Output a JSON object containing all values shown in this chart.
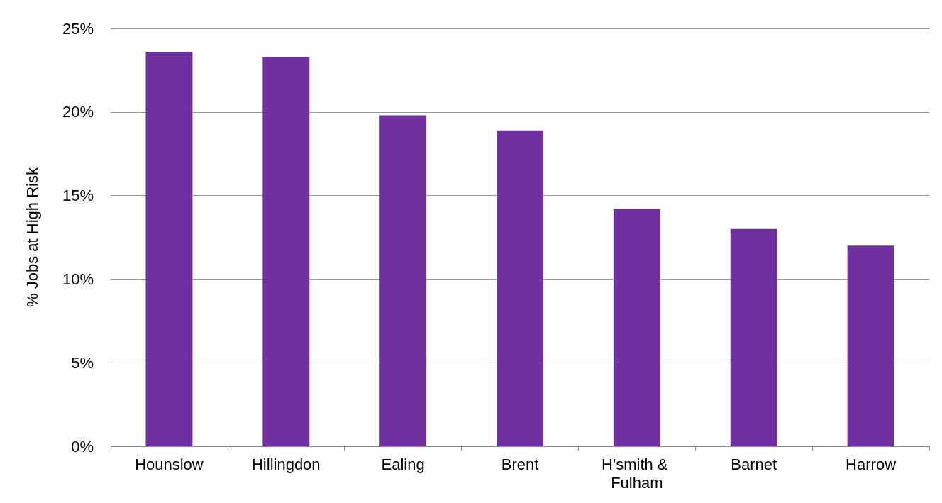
{
  "chart_data": {
    "type": "bar",
    "ylabel": "% Jobs at High Risk",
    "categories": [
      "Hounslow",
      "Hillingdon",
      "Ealing",
      "Brent",
      "H'smith & Fulham",
      "Barnet",
      "Harrow"
    ],
    "values": [
      23.6,
      23.3,
      19.8,
      18.9,
      14.2,
      13.0,
      12.0
    ],
    "color": "#7030a0",
    "ylim": [
      0,
      25
    ],
    "yticks": [
      {
        "value": 0,
        "label": "0%"
      },
      {
        "value": 5,
        "label": "5%"
      },
      {
        "value": 10,
        "label": "10%"
      },
      {
        "value": 15,
        "label": "15%"
      },
      {
        "value": 20,
        "label": "20%"
      },
      {
        "value": 25,
        "label": "25%"
      }
    ],
    "grid": "y"
  }
}
